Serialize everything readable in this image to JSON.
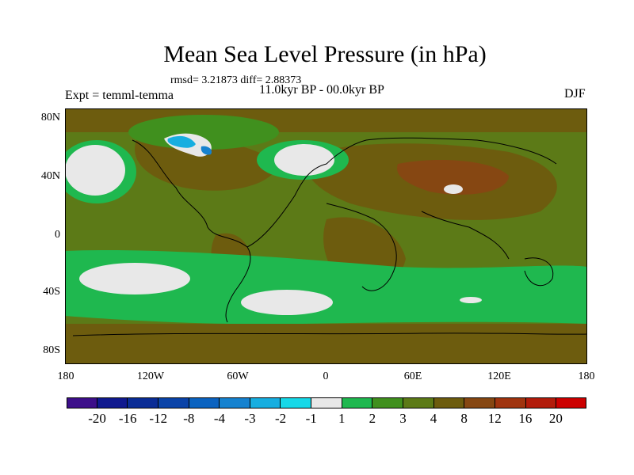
{
  "title": "Mean Sea Level Pressure (in hPa)",
  "stats": "rmsd= 3.21873 diff= 2.88373",
  "period": "11.0kyr BP - 00.0kyr BP",
  "experiment": "Expt = temml-temma",
  "season": "DJF",
  "lat_labels": [
    "80N",
    "40N",
    "0",
    "40S",
    "80S"
  ],
  "lon_labels": [
    "180",
    "120W",
    "60W",
    "0",
    "60E",
    "120E",
    "180"
  ],
  "colorbar": {
    "labels": [
      "-20",
      "-16",
      "-12",
      "-8",
      "-4",
      "-3",
      "-2",
      "-1",
      "1",
      "2",
      "3",
      "4",
      "8",
      "12",
      "16",
      "20"
    ],
    "colors": [
      "#3d0f8a",
      "#10198f",
      "#0a2c96",
      "#0a43a8",
      "#0b63c0",
      "#1682cf",
      "#17aee0",
      "#17d8e8",
      "#e8e8e8",
      "#1fb84f",
      "#40901e",
      "#5c7a17",
      "#6d5c0e",
      "#864712",
      "#a0340f",
      "#b21c0b",
      "#cc0000"
    ]
  },
  "map_colors": {
    "ocean_base": "#3c7a20",
    "land_base": "#6d5c0e",
    "positive_strong": "#864712",
    "green_band": "#1fb84f",
    "white_patch": "#e8e8e8",
    "blue_patch": "#17aee0"
  }
}
